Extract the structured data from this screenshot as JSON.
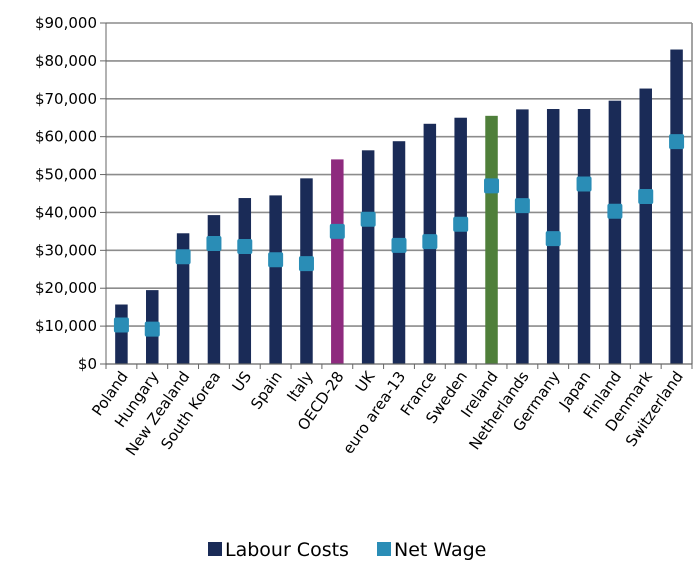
{
  "chart_data": {
    "type": "bar",
    "categories": [
      "Poland",
      "Hungary",
      "New Zealand",
      "South Korea",
      "US",
      "Spain",
      "Italy",
      "OECD-28",
      "UK",
      "euro area-13",
      "France",
      "Sweden",
      "Ireland",
      "Netherlands",
      "Germany",
      "Japan",
      "Finland",
      "Denmark",
      "Switzerland"
    ],
    "series": [
      {
        "name": "Labour Costs",
        "kind": "bar",
        "color": "#1a2b57",
        "values": [
          15700,
          19500,
          34500,
          39300,
          43800,
          44500,
          49000,
          54000,
          56400,
          58800,
          63400,
          65000,
          65500,
          67200,
          67300,
          67300,
          69500,
          72700,
          83000
        ],
        "highlight_colors": {
          "OECD-28": "#8e2a7e",
          "Ireland": "#4f7f3a"
        }
      },
      {
        "name": "Net Wage",
        "kind": "marker",
        "color": "#2a8db6",
        "values": [
          10300,
          9200,
          28300,
          31800,
          31000,
          27500,
          26500,
          35000,
          38200,
          31300,
          32300,
          36900,
          47000,
          41800,
          33100,
          47500,
          40300,
          44200,
          58700
        ]
      }
    ],
    "y_ticks": [
      "$0",
      "$10,000",
      "$20,000",
      "$30,000",
      "$40,000",
      "$50,000",
      "$60,000",
      "$70,000",
      "$80,000",
      "$90,000"
    ],
    "ylim": [
      0,
      90000
    ],
    "grid": true,
    "legend_position": "bottom-center",
    "title": "",
    "xlabel": "",
    "ylabel": ""
  }
}
